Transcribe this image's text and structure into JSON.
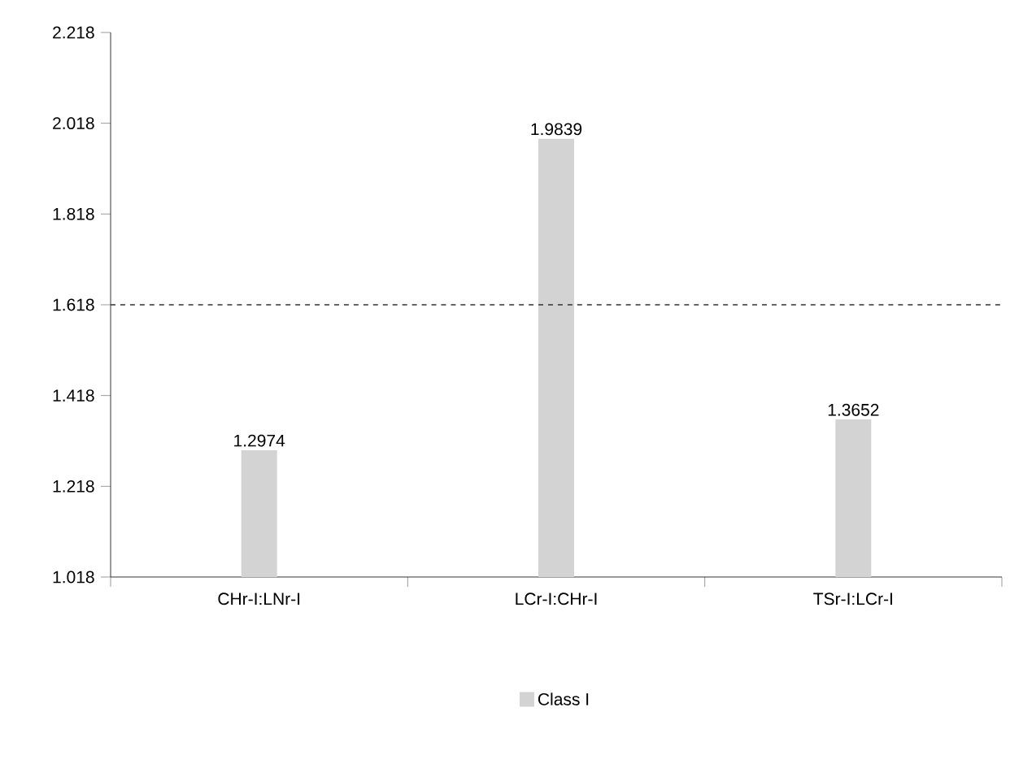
{
  "chart_data": {
    "type": "bar",
    "categories": [
      "CHr-I:LNr-I",
      "LCr-I:CHr-I",
      "TSr-I:LCr-I"
    ],
    "series": [
      {
        "name": "Class I",
        "color": "#d3d3d3",
        "values": [
          1.2974,
          1.9839,
          1.3652
        ]
      }
    ],
    "ylim": [
      1.018,
      2.218
    ],
    "yticks": [
      1.018,
      1.218,
      1.418,
      1.618,
      1.818,
      2.018,
      2.218
    ],
    "ref_lines": [
      {
        "axis": "y",
        "value": 1.618,
        "color": "#333333",
        "line_style": "dashed"
      }
    ],
    "data_labels": true,
    "legend": "bottom",
    "grid": false
  }
}
